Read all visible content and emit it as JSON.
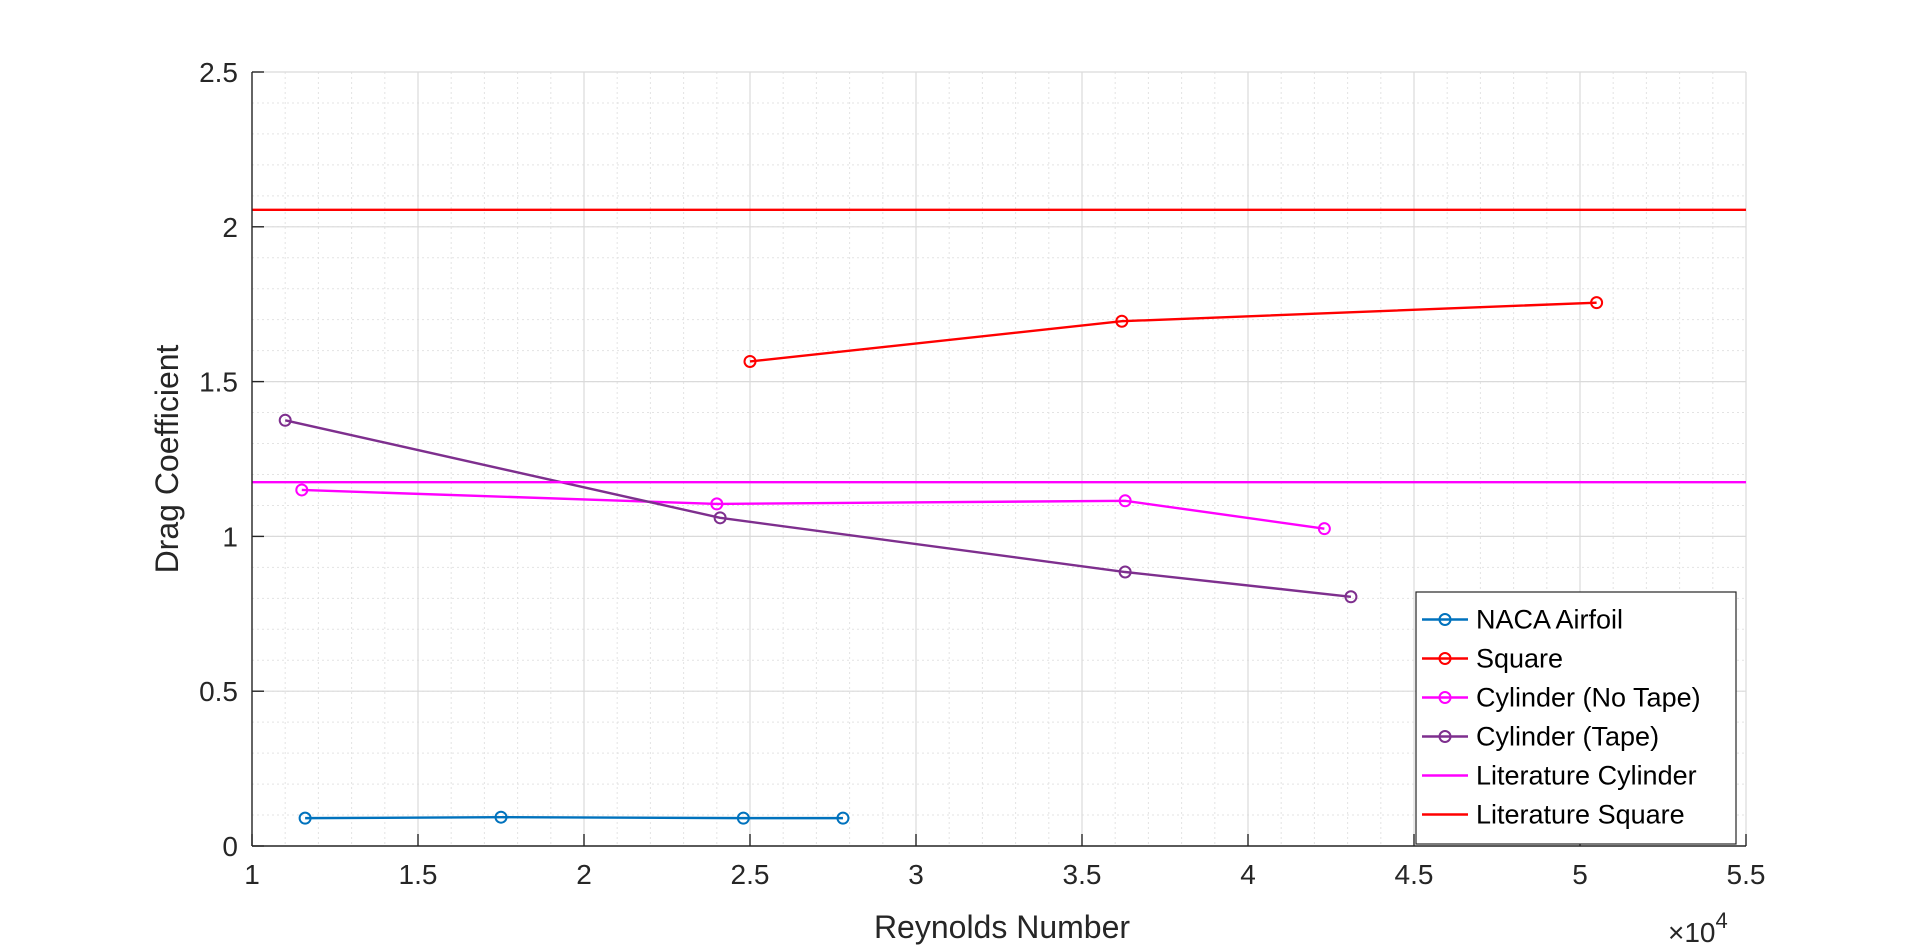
{
  "chart_data": {
    "type": "line",
    "title": "",
    "xlabel": "Reynolds Number",
    "ylabel": "Drag Coefficient",
    "x_multiplier_label": {
      "base": "×10",
      "exponent": "4"
    },
    "xlim": [
      1,
      5.5
    ],
    "ylim": [
      0,
      2.5
    ],
    "xticks": [
      1,
      1.5,
      2,
      2.5,
      3,
      3.5,
      4,
      4.5,
      5,
      5.5
    ],
    "xtick_labels": [
      "1",
      "1.5",
      "2",
      "2.5",
      "3",
      "3.5",
      "4",
      "4.5",
      "5",
      "5.5"
    ],
    "yticks": [
      0,
      0.5,
      1,
      1.5,
      2,
      2.5
    ],
    "ytick_labels": [
      "0",
      "0.5",
      "1",
      "1.5",
      "2",
      "2.5"
    ],
    "grid": true,
    "minor_grid": true,
    "legend_position": "bottom-right",
    "series": [
      {
        "name": "NACA Airfoil",
        "color": "#0072BD",
        "marker": "circle",
        "x": [
          1.16,
          1.75,
          2.48,
          2.78
        ],
        "y": [
          0.09,
          0.093,
          0.09,
          0.09
        ]
      },
      {
        "name": "Square",
        "color": "#FF0000",
        "marker": "circle",
        "x": [
          2.5,
          3.62,
          5.05
        ],
        "y": [
          1.565,
          1.695,
          1.755
        ]
      },
      {
        "name": "Cylinder (No Tape)",
        "color": "#FF00FF",
        "marker": "circle",
        "x": [
          1.15,
          2.4,
          3.63,
          4.23
        ],
        "y": [
          1.15,
          1.105,
          1.115,
          1.025
        ]
      },
      {
        "name": "Cylinder (Tape)",
        "color": "#7E2F8E",
        "marker": "circle",
        "x": [
          1.1,
          2.41,
          3.63,
          4.31
        ],
        "y": [
          1.375,
          1.06,
          0.885,
          0.805
        ]
      },
      {
        "name": "Literature Cylinder",
        "color": "#FF00FF",
        "marker": "none",
        "x": [
          1,
          5.5
        ],
        "y": [
          1.175,
          1.175
        ]
      },
      {
        "name": "Literature Square",
        "color": "#FF0000",
        "marker": "none",
        "x": [
          1,
          5.5
        ],
        "y": [
          2.055,
          2.055
        ]
      }
    ]
  }
}
